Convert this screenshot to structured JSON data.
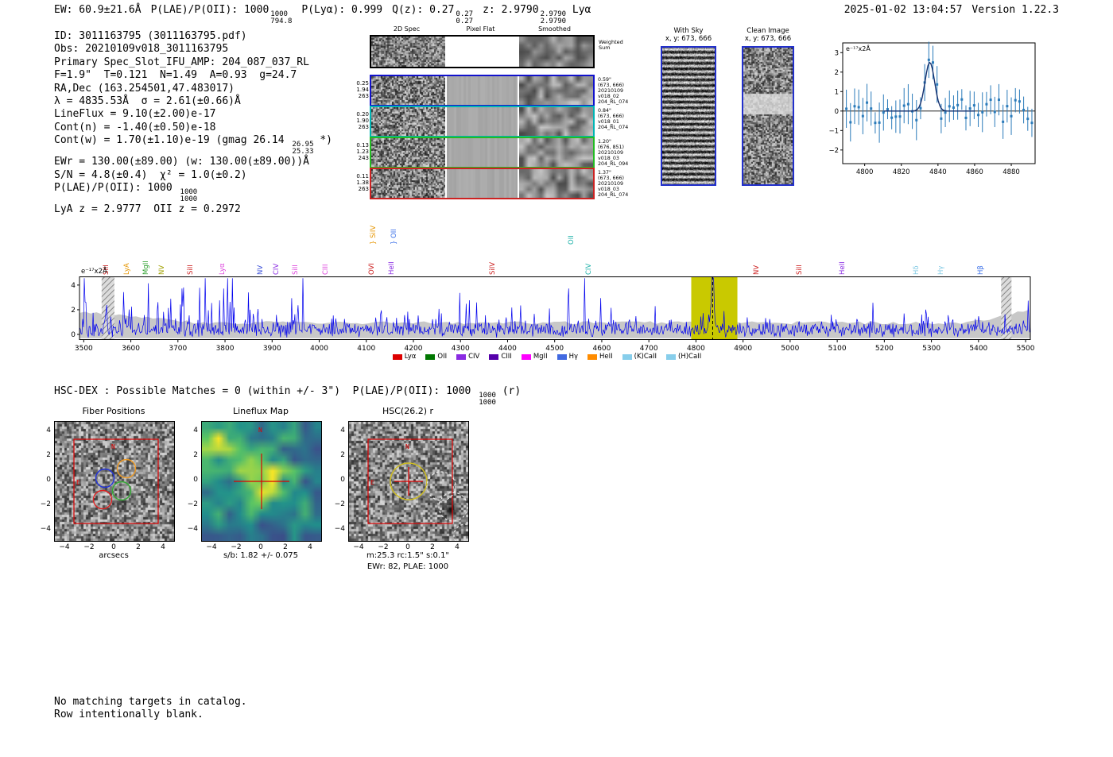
{
  "header": {
    "ew": "EW: 60.9±21.6Å",
    "plae_label": "P(LAE)/P(OII): 1000",
    "plae_hi": "1000",
    "plae_lo": "794.8",
    "plya": "P(Lyα): 0.999",
    "qz_label": "Q(z): 0.27",
    "qz_hi": "0.27",
    "qz_lo": "0.27",
    "z_label": "z: 2.9790",
    "z_hi": "2.9790",
    "z_lo": "2.9790",
    "line_type": "Lyα",
    "timestamp": "2025-01-02 13:04:57",
    "version": "Version 1.22.3"
  },
  "info_lines": [
    "ID: 3011163795 (3011163795.pdf)",
    "Obs: 20210109v018_3011163795",
    "Primary Spec_Slot_IFU_AMP: 204_087_037_RL",
    "F=1.9\"  T=0.121  N=1.49  A=0.93  g=24.7",
    "RA,Dec (163.254501,47.483017)",
    "λ = 4835.53Å  σ = 2.61(±0.66)Å",
    "LineFlux = 9.10(±2.00)e-17",
    "Cont(n) = -1.40(±0.50)e-18",
    [
      {
        "t": "Cont(w) = 1.70(±1.10)e-19 (gmag 26.14 "
      },
      {
        "hi": "26.95",
        "lo": "25.33"
      },
      {
        "t": " *)"
      }
    ],
    "EWr = 130.00(±89.00) (w: 130.00(±89.00))Å",
    "S/N = 4.8(±0.4)  χ² = 1.0(±0.2)",
    [
      {
        "t": "P(LAE)/P(OII): 1000 "
      },
      {
        "hi": "1000",
        "lo": "1000"
      }
    ],
    "LyA z = 2.9777  OII z = 0.2972"
  ],
  "spec2d": {
    "col_headers": [
      "2D Spec",
      "Pixel Flat",
      "Smoothed"
    ],
    "weighted_sum": [
      "Weighted",
      "Sum"
    ],
    "rows": [
      {
        "left": [
          "0.25",
          "1.94",
          "263"
        ],
        "color": "#1111cc",
        "right": [
          "0.59\"",
          "(673, 666)",
          "20210109",
          "v018_02",
          "204_RL_074"
        ]
      },
      {
        "left": [
          "0.20",
          "1.90",
          "263"
        ],
        "color": "#00b5b5",
        "right": [
          "0.84\"",
          "(673, 666)",
          "v018_01",
          "204_RL_074"
        ]
      },
      {
        "left": [
          "0.13",
          "1.23",
          "243"
        ],
        "color": "#22bb22",
        "right": [
          "1.20\"",
          "(676, 851)",
          "20210109",
          "v018_03",
          "204_RL_094"
        ]
      },
      {
        "left": [
          "0.11",
          "1.38",
          "263"
        ],
        "color": "#cc2222",
        "right": [
          "1.37\"",
          "(673, 666)",
          "20210109",
          "v018_03",
          "204_RL_074"
        ]
      }
    ]
  },
  "with_sky": {
    "title": "With Sky",
    "coords": "x, y: 673, 666"
  },
  "clean_image": {
    "title": "Clean Image",
    "coords": "x, y: 673, 666"
  },
  "hsc_dex": [
    {
      "t": "HSC-DEX : Possible Matches = 0 (within +/- 3\")  P(LAE)/P(OII): 1000 "
    },
    {
      "hi": "1000",
      "lo": "1000"
    },
    {
      "t": " (r)"
    }
  ],
  "cutouts": {
    "ticks": [
      -4,
      -2,
      0,
      2,
      4
    ],
    "fiber": {
      "title": "Fiber Positions",
      "xlabel": "arcsecs",
      "north": "N",
      "east": "E"
    },
    "lineflux": {
      "title": "Lineflux Map",
      "xlabel": "s/b: 1.82 +/- 0.075",
      "north": "N"
    },
    "hsc": {
      "title": "HSC(26.2) r",
      "xlabel": "m:25.3 rc:1.5\"  s:0.1\"",
      "xlabel2": "EWr: 82, PLAE: 1000",
      "north": "N",
      "east": "E"
    }
  },
  "footer_lines": [
    "No matching targets in catalog.",
    "Row intentionally blank."
  ],
  "chart_data": [
    {
      "id": "emission-line-fit-zoom",
      "type": "scatter",
      "annotation": "e⁻¹⁷x2Å",
      "xlim": [
        4788,
        4893
      ],
      "ylim": [
        -2.7,
        3.5
      ],
      "xticks": [
        4800,
        4820,
        4840,
        4860,
        4880
      ],
      "yticks": [
        -2,
        -1,
        0,
        1,
        2,
        3
      ],
      "zero_line": true,
      "series": [
        {
          "name": "flux",
          "style": "errorbar",
          "color": "#2b7bba",
          "description": "noisy flux points about 0 with ±0.5–1.1 error bars; emission feature at line center"
        },
        {
          "name": "gaussian_fit",
          "style": "line",
          "color": "#15306e",
          "center": 4835.53,
          "sigma": 2.61,
          "amplitude": 2.5
        }
      ]
    },
    {
      "id": "full-spectrum",
      "type": "line",
      "annotation": "e⁻¹⁷x2Å",
      "xlim": [
        3491,
        5510
      ],
      "ylim": [
        -0.45,
        4.7
      ],
      "xticks": [
        3500,
        3600,
        3700,
        3800,
        3900,
        4000,
        4100,
        4200,
        4300,
        4400,
        4500,
        4600,
        4700,
        4800,
        4900,
        5000,
        5100,
        5200,
        5300,
        5400,
        5500
      ],
      "yticks": [
        0,
        2,
        4
      ],
      "spectrum_color": "#0000ee",
      "error_band_color": "#c8c8c8",
      "emission_line": {
        "wavelength": 4835.53,
        "peak": 4.2
      },
      "highlight_band": {
        "x0": 4790,
        "x1": 4888,
        "color": "#c9c900"
      },
      "masked_regions": [
        [
          3538,
          3565
        ],
        [
          5448,
          5470
        ]
      ],
      "line_labels": [
        {
          "label": "SiII",
          "x": 3550,
          "color": "#cc2020",
          "tier": 0
        },
        {
          "label": "LyA",
          "x": 3594,
          "color": "#e69500",
          "tier": 0
        },
        {
          "label": "MgII",
          "x": 3634,
          "color": "#2ca02c",
          "tier": 0
        },
        {
          "label": "NV",
          "x": 3668,
          "color": "#a0a000",
          "tier": 0
        },
        {
          "label": "SiII",
          "x": 3729,
          "color": "#cc2020",
          "tier": 0
        },
        {
          "label": "Lyα",
          "x": 3796,
          "color": "#dd44dd",
          "tier": 0
        },
        {
          "label": "NV",
          "x": 3877,
          "color": "#3a4fd8",
          "tier": 0
        },
        {
          "label": "CIV",
          "x": 3912,
          "color": "#8a2be2",
          "tier": 0
        },
        {
          "label": "SiII",
          "x": 3952,
          "color": "#dd44dd",
          "tier": 0
        },
        {
          "label": "CIII",
          "x": 4016,
          "color": "#dd44dd",
          "tier": 0
        },
        {
          "label": "OVI",
          "x": 4114,
          "color": "#cc2020",
          "tier": 0
        },
        {
          "label": "} SiIV",
          "x": 4118,
          "color": "#e69500",
          "tier": 1
        },
        {
          "label": "HeII",
          "x": 4156,
          "color": "#8a2be2",
          "tier": 0
        },
        {
          "label": "} OII",
          "x": 4162,
          "color": "#3a6fe8",
          "tier": 1
        },
        {
          "label": "SiIV",
          "x": 4370,
          "color": "#cc2020",
          "tier": 0
        },
        {
          "label": "OII",
          "x": 4537,
          "color": "#20b2aa",
          "tier": 1
        },
        {
          "label": "CIV",
          "x": 4575,
          "color": "#20b2aa",
          "tier": 0
        },
        {
          "label": "NV",
          "x": 4931,
          "color": "#cc2020",
          "tier": 0
        },
        {
          "label": "SiII",
          "x": 5022,
          "color": "#cc2020",
          "tier": 0
        },
        {
          "label": "HeII",
          "x": 5114,
          "color": "#8a2be2",
          "tier": 0
        },
        {
          "label": "Hδ",
          "x": 5270,
          "color": "#7ec8e3",
          "tier": 0
        },
        {
          "label": "Hγ",
          "x": 5323,
          "color": "#7ec8e3",
          "tier": 0
        },
        {
          "label": "Hβ",
          "x": 5407,
          "color": "#3a6fe8",
          "tier": 0
        }
      ],
      "legend": [
        {
          "label": "Lyα",
          "color": "#dd0000"
        },
        {
          "label": "OII",
          "color": "#007700"
        },
        {
          "label": "CIV",
          "color": "#8a2be2"
        },
        {
          "label": "CIII",
          "color": "#5500aa"
        },
        {
          "label": "MgII",
          "color": "#ff00ff"
        },
        {
          "label": "Hγ",
          "color": "#4169e1"
        },
        {
          "label": "HeII",
          "color": "#ff8c00"
        },
        {
          "label": "(K)CaII",
          "color": "#87ceeb"
        },
        {
          "label": "(H)CaII",
          "color": "#87ceeb"
        }
      ]
    }
  ]
}
